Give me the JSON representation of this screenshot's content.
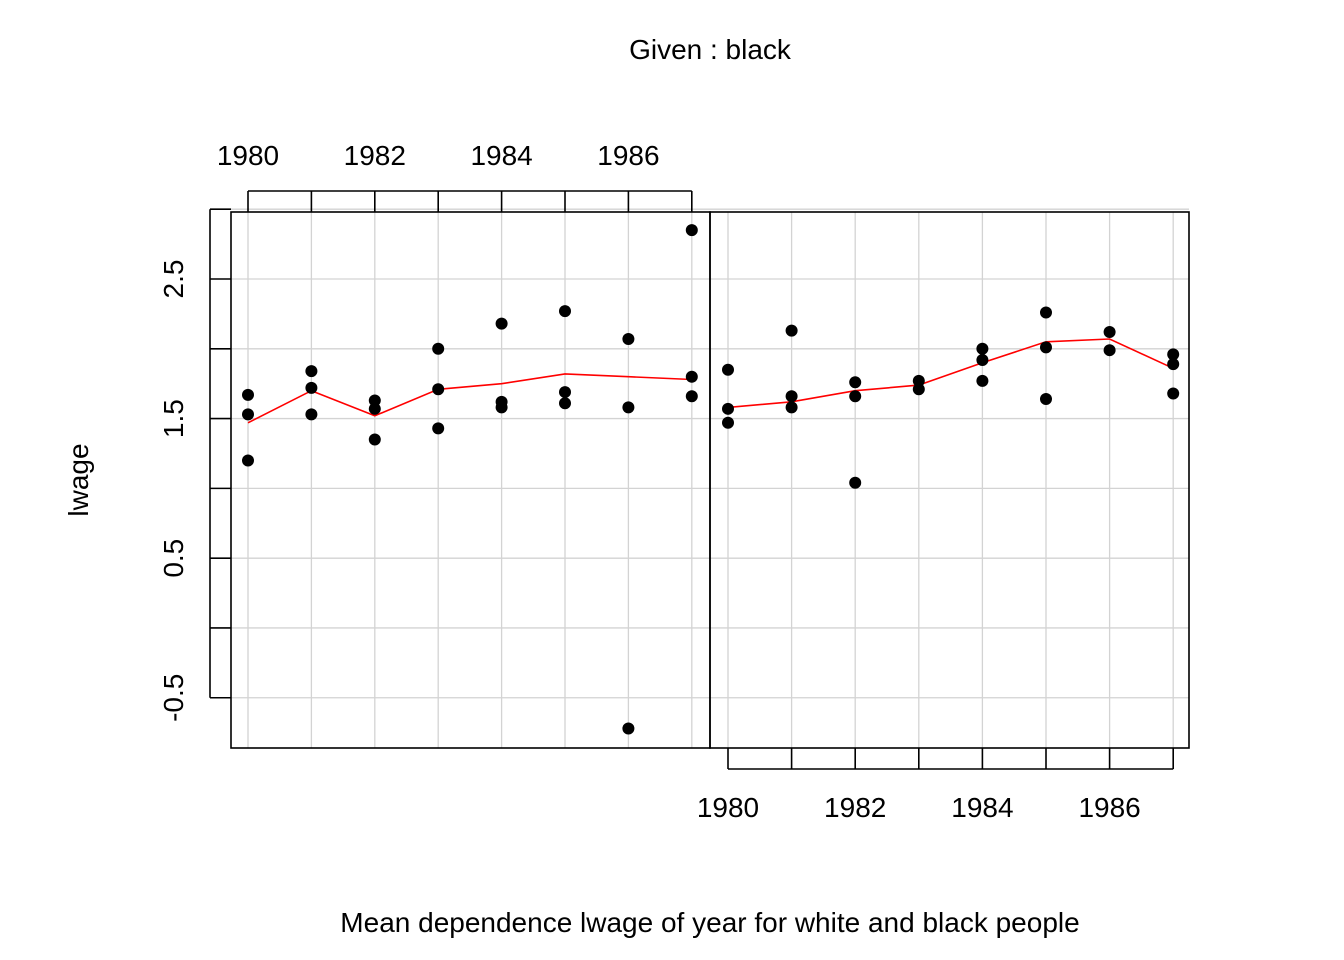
{
  "given_label": "Given : black",
  "chart_data": {
    "type": "scatter",
    "xlabel": "Mean dependence lwage of year for white and black people",
    "ylabel": "lwage",
    "ylim": [
      -0.86,
      2.98
    ],
    "y_ticks": [
      -0.5,
      0,
      0.5,
      1,
      1.5,
      2,
      2.5,
      3
    ],
    "y_tick_labels": [
      {
        "value": -0.5,
        "label": "-0.5"
      },
      {
        "value": 0.5,
        "label": "0.5"
      },
      {
        "value": 1.5,
        "label": "1.5"
      },
      {
        "value": 2.5,
        "label": "2.5"
      }
    ],
    "x_ticks": [
      1980,
      1981,
      1982,
      1983,
      1984,
      1985,
      1986,
      1987
    ],
    "x_tick_labels": [
      "1980",
      "1982",
      "1984",
      "1986"
    ],
    "grid": true,
    "panels": [
      {
        "name": "left",
        "points": [
          [
            1980,
            1.2
          ],
          [
            1980,
            1.53
          ],
          [
            1980,
            1.67
          ],
          [
            1981,
            1.53
          ],
          [
            1981,
            1.72
          ],
          [
            1981,
            1.84
          ],
          [
            1982,
            1.35
          ],
          [
            1982,
            1.57
          ],
          [
            1982,
            1.63
          ],
          [
            1983,
            1.43
          ],
          [
            1983,
            1.71
          ],
          [
            1983,
            2.0
          ],
          [
            1984,
            1.58
          ],
          [
            1984,
            1.62
          ],
          [
            1984,
            2.18
          ],
          [
            1985,
            1.61
          ],
          [
            1985,
            1.69
          ],
          [
            1985,
            2.27
          ],
          [
            1986,
            -0.72
          ],
          [
            1986,
            1.58
          ],
          [
            1986,
            2.07
          ],
          [
            1987,
            1.66
          ],
          [
            1987,
            1.8
          ],
          [
            1987,
            2.85
          ]
        ],
        "mean_line": [
          [
            1980,
            1.47
          ],
          [
            1981,
            1.7
          ],
          [
            1982,
            1.52
          ],
          [
            1983,
            1.71
          ],
          [
            1984,
            1.75
          ],
          [
            1985,
            1.82
          ],
          [
            1986,
            1.8
          ],
          [
            1987,
            1.78
          ]
        ]
      },
      {
        "name": "right",
        "points": [
          [
            1980,
            1.47
          ],
          [
            1980,
            1.57
          ],
          [
            1980,
            1.85
          ],
          [
            1981,
            1.58
          ],
          [
            1981,
            1.66
          ],
          [
            1981,
            2.13
          ],
          [
            1982,
            1.04
          ],
          [
            1982,
            1.66
          ],
          [
            1982,
            1.76
          ],
          [
            1983,
            1.71
          ],
          [
            1983,
            1.77
          ],
          [
            1984,
            1.77
          ],
          [
            1984,
            1.92
          ],
          [
            1984,
            2.0
          ],
          [
            1985,
            1.64
          ],
          [
            1985,
            2.01
          ],
          [
            1985,
            2.26
          ],
          [
            1986,
            1.99
          ],
          [
            1986,
            2.12
          ],
          [
            1987,
            1.68
          ],
          [
            1987,
            1.89
          ],
          [
            1987,
            1.96
          ]
        ],
        "mean_line": [
          [
            1980,
            1.58
          ],
          [
            1981,
            1.62
          ],
          [
            1982,
            1.7
          ],
          [
            1983,
            1.74
          ],
          [
            1984,
            1.9
          ],
          [
            1985,
            2.05
          ],
          [
            1986,
            2.07
          ],
          [
            1987,
            1.86
          ]
        ]
      }
    ],
    "colors": {
      "points": "#000000",
      "mean_line": "#ff0000",
      "grid": "#d3d3d3"
    }
  }
}
